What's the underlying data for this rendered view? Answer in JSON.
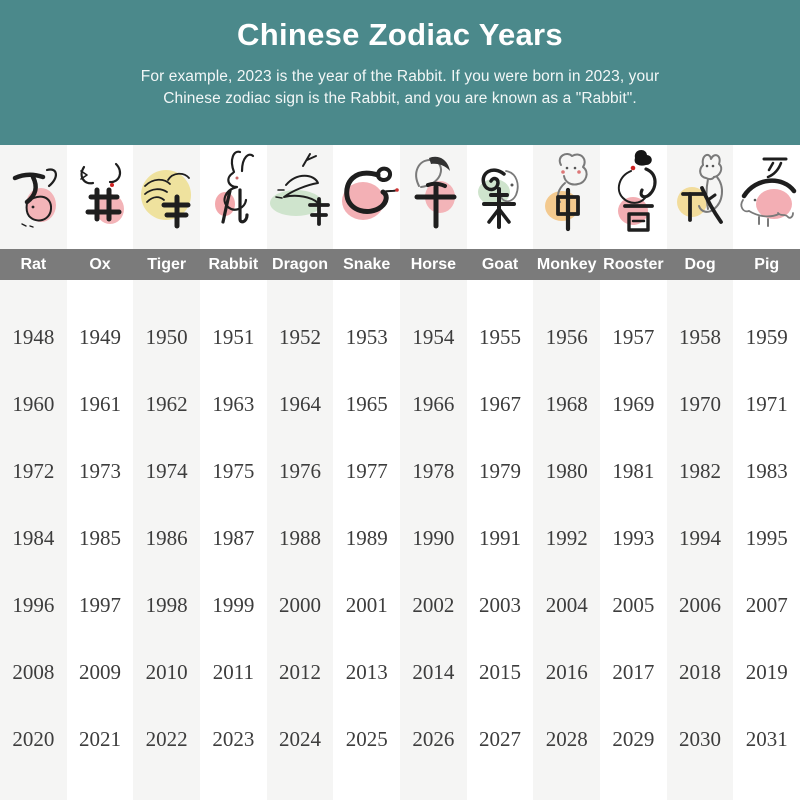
{
  "header": {
    "title": "Chinese Zodiac Years",
    "subtitle_line1": "For example, 2023 is the year of the Rabbit. If you were born in 2023, your",
    "subtitle_line2": "Chinese zodiac sign is the Rabbit, and you are known as a \"Rabbit\"."
  },
  "colors": {
    "header_bg": "#4b898b",
    "name_bar_bg": "#7b7b7b",
    "stripe_bg": "#f5f5f4",
    "white_bg": "#ffffff",
    "year_text": "#3d3d3d",
    "ink": "#1e1e1e"
  },
  "zodiac_icons": [
    {
      "icon": "rat-calligraphy-icon",
      "blob_color": "#f3b4b8"
    },
    {
      "icon": "ox-calligraphy-icon",
      "blob_color": "#f3b4b8"
    },
    {
      "icon": "tiger-calligraphy-icon",
      "blob_color": "#efe29e"
    },
    {
      "icon": "rabbit-calligraphy-icon",
      "blob_color": "#f3a9ad"
    },
    {
      "icon": "dragon-calligraphy-icon",
      "blob_color": "#cfe4cd"
    },
    {
      "icon": "snake-calligraphy-icon",
      "blob_color": "#f3b0b5"
    },
    {
      "icon": "horse-calligraphy-icon",
      "blob_color": "#f3b4b8"
    },
    {
      "icon": "goat-calligraphy-icon",
      "blob_color": "#cfe4cd"
    },
    {
      "icon": "monkey-calligraphy-icon",
      "blob_color": "#f3c98e"
    },
    {
      "icon": "rooster-calligraphy-icon",
      "blob_color": "#f3aeb3"
    },
    {
      "icon": "dog-calligraphy-icon",
      "blob_color": "#f2dc9b"
    },
    {
      "icon": "pig-calligraphy-icon",
      "blob_color": "#f3aeb4"
    }
  ],
  "chart_data": {
    "type": "table",
    "title": "Chinese Zodiac Years",
    "columns": [
      "Rat",
      "Ox",
      "Tiger",
      "Rabbit",
      "Dragon",
      "Snake",
      "Horse",
      "Goat",
      "Monkey",
      "Rooster",
      "Dog",
      "Pig"
    ],
    "rows": [
      [
        1948,
        1949,
        1950,
        1951,
        1952,
        1953,
        1954,
        1955,
        1956,
        1957,
        1958,
        1959
      ],
      [
        1960,
        1961,
        1962,
        1963,
        1964,
        1965,
        1966,
        1967,
        1968,
        1969,
        1970,
        1971
      ],
      [
        1972,
        1973,
        1974,
        1975,
        1976,
        1977,
        1978,
        1979,
        1980,
        1981,
        1982,
        1983
      ],
      [
        1984,
        1985,
        1986,
        1987,
        1988,
        1989,
        1990,
        1991,
        1992,
        1993,
        1994,
        1995
      ],
      [
        1996,
        1997,
        1998,
        1999,
        2000,
        2001,
        2002,
        2003,
        2004,
        2005,
        2006,
        2007
      ],
      [
        2008,
        2009,
        2010,
        2011,
        2012,
        2013,
        2014,
        2015,
        2016,
        2017,
        2018,
        2019
      ],
      [
        2020,
        2021,
        2022,
        2023,
        2024,
        2025,
        2026,
        2027,
        2028,
        2029,
        2030,
        2031
      ]
    ]
  }
}
